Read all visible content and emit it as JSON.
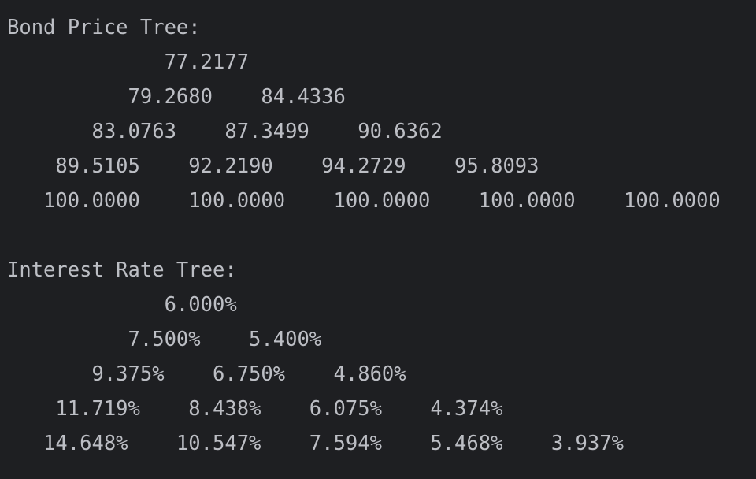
{
  "console": {
    "lines": [
      "Bond Price Tree:",
      "             77.2177",
      "          79.2680    84.4336",
      "       83.0763    87.3499    90.6362",
      "    89.5105    92.2190    94.2729    95.8093",
      "   100.0000    100.0000    100.0000    100.0000    100.0000",
      "",
      "Interest Rate Tree:",
      "             6.000%",
      "          7.500%    5.400%",
      "       9.375%    6.750%    4.860%",
      "    11.719%    8.438%    6.075%    4.374%",
      "   14.648%    10.547%    7.594%    5.468%    3.937%"
    ]
  }
}
